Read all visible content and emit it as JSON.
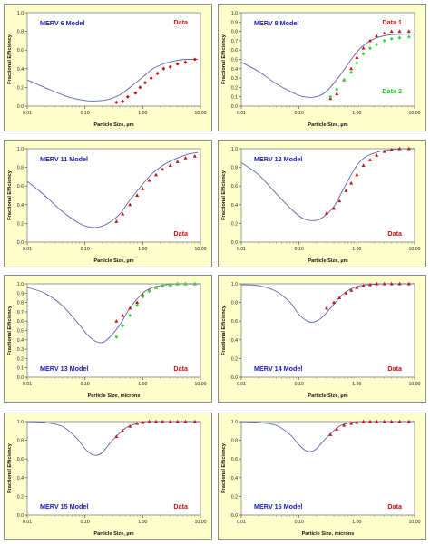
{
  "chart_data": [
    {
      "type": "scatter",
      "title": "MERV 6 Model",
      "xlabel": "Particle Size, µm",
      "ylabel": "Fractional Efficiency",
      "xscale": "log",
      "xlim": [
        0.01,
        10
      ],
      "ylim": [
        0,
        1
      ],
      "x_ticks": [
        "0.01",
        "0.10",
        "1.00",
        "10.00"
      ],
      "y_ticks": [
        "0.0",
        "0.2",
        "0.4",
        "0.6",
        "0.8",
        "1.0"
      ],
      "title_position": "top-left",
      "legend_position": "top-right",
      "series": [
        {
          "name": "MERV 6 Model",
          "kind": "line",
          "color": "#5a64b4",
          "x": [
            0.01,
            0.02,
            0.05,
            0.1,
            0.15,
            0.25,
            0.4,
            0.6,
            1.0,
            1.5,
            2.5,
            4,
            6,
            9
          ],
          "y": [
            0.28,
            0.2,
            0.1,
            0.06,
            0.055,
            0.07,
            0.12,
            0.2,
            0.31,
            0.4,
            0.46,
            0.49,
            0.5,
            0.5
          ]
        },
        {
          "name": "Data",
          "kind": "marker",
          "color": "#cc1111",
          "marker": "diamond",
          "x": [
            0.35,
            0.45,
            0.55,
            0.75,
            0.9,
            1.1,
            1.4,
            1.8,
            2.3,
            3,
            4,
            5.5,
            8
          ],
          "y": [
            0.04,
            0.05,
            0.1,
            0.14,
            0.2,
            0.25,
            0.3,
            0.35,
            0.4,
            0.42,
            0.45,
            0.47,
            0.5
          ]
        }
      ]
    },
    {
      "type": "scatter",
      "title": "MERV 8 Model",
      "xlabel": "Particle Size, µm",
      "ylabel": "Fractional Efficiency",
      "xscale": "log",
      "xlim": [
        0.01,
        10
      ],
      "ylim": [
        0,
        1
      ],
      "x_ticks": [
        "0.01",
        "0.10",
        "1.00",
        "10.00"
      ],
      "y_ticks": [
        "0.0",
        "0.1",
        "0.2",
        "0.3",
        "0.4",
        "0.5",
        "0.6",
        "0.7",
        "0.8",
        "0.9",
        "1.0"
      ],
      "title_position": "top-left",
      "legend_position": "top-right",
      "series": [
        {
          "name": "MERV 8 Model",
          "kind": "line",
          "color": "#5a64b4",
          "x": [
            0.01,
            0.02,
            0.04,
            0.08,
            0.12,
            0.2,
            0.3,
            0.5,
            0.8,
            1.2,
            2,
            3.5,
            6,
            10
          ],
          "y": [
            0.47,
            0.37,
            0.24,
            0.14,
            0.1,
            0.1,
            0.16,
            0.32,
            0.5,
            0.63,
            0.72,
            0.76,
            0.77,
            0.77
          ]
        },
        {
          "name": "Data 1",
          "kind": "marker",
          "color": "#cc1111",
          "marker": "triangle",
          "x": [
            0.35,
            0.45,
            0.6,
            0.8,
            1.0,
            1.3,
            1.7,
            2.2,
            3,
            4,
            5.5,
            8
          ],
          "y": [
            0.08,
            0.13,
            0.28,
            0.4,
            0.52,
            0.62,
            0.7,
            0.75,
            0.78,
            0.8,
            0.8,
            0.8
          ]
        },
        {
          "name": "Data 2",
          "kind": "marker",
          "color": "#33dd33",
          "marker": "diamond",
          "x": [
            0.35,
            0.45,
            0.6,
            0.8,
            1.0,
            1.3,
            1.7,
            2.2,
            3,
            4,
            5.5,
            8
          ],
          "y": [
            0.1,
            0.18,
            0.28,
            0.36,
            0.46,
            0.56,
            0.62,
            0.66,
            0.7,
            0.72,
            0.73,
            0.74
          ]
        }
      ]
    },
    {
      "type": "scatter",
      "title": "MERV 11 Model",
      "xlabel": "Particle Size, µm",
      "ylabel": "Fractional Efficiency",
      "xscale": "log",
      "xlim": [
        0.01,
        10
      ],
      "ylim": [
        0,
        1
      ],
      "x_ticks": [
        "0.01",
        "0.10",
        "1.00",
        "10.00"
      ],
      "y_ticks": [
        "0.0",
        "0.2",
        "0.4",
        "0.6",
        "0.8",
        "1.0"
      ],
      "title_position": "top-left",
      "legend_position": "bottom-right",
      "series": [
        {
          "name": "MERV 11 Model",
          "kind": "line",
          "color": "#5a64b4",
          "x": [
            0.01,
            0.02,
            0.04,
            0.08,
            0.12,
            0.17,
            0.25,
            0.4,
            0.6,
            1.0,
            1.5,
            2.5,
            4,
            6,
            9
          ],
          "y": [
            0.65,
            0.5,
            0.33,
            0.2,
            0.16,
            0.16,
            0.2,
            0.3,
            0.45,
            0.62,
            0.74,
            0.84,
            0.9,
            0.94,
            0.96
          ]
        },
        {
          "name": "Data",
          "kind": "marker",
          "color": "#cc1111",
          "marker": "triangle",
          "x": [
            0.35,
            0.45,
            0.6,
            0.8,
            1.0,
            1.3,
            1.7,
            2.2,
            3,
            4,
            5.5,
            8
          ],
          "y": [
            0.22,
            0.3,
            0.4,
            0.5,
            0.57,
            0.66,
            0.72,
            0.78,
            0.82,
            0.86,
            0.9,
            0.92
          ]
        }
      ]
    },
    {
      "type": "scatter",
      "title": "MERV 12 Model",
      "xlabel": "Particle Size, µm",
      "ylabel": "Fractional Efficiency",
      "xscale": "log",
      "xlim": [
        0.01,
        10
      ],
      "ylim": [
        0,
        1
      ],
      "x_ticks": [
        "0.01",
        "0.10",
        "1.00",
        "10.00"
      ],
      "y_ticks": [
        "0.0",
        "0.2",
        "0.4",
        "0.6",
        "0.8",
        "1.0"
      ],
      "title_position": "top-left",
      "legend_position": "bottom-right",
      "series": [
        {
          "name": "MERV 12 Model",
          "kind": "line",
          "color": "#5a64b4",
          "x": [
            0.01,
            0.02,
            0.04,
            0.08,
            0.12,
            0.18,
            0.25,
            0.4,
            0.6,
            1.0,
            1.5,
            2.5,
            4,
            6,
            10
          ],
          "y": [
            0.85,
            0.72,
            0.52,
            0.33,
            0.25,
            0.23,
            0.26,
            0.38,
            0.58,
            0.82,
            0.92,
            0.97,
            0.99,
            1.0,
            1.0
          ]
        },
        {
          "name": "Data",
          "kind": "marker",
          "color": "#cc1111",
          "marker": "triangle",
          "x": [
            0.3,
            0.4,
            0.5,
            0.65,
            0.8,
            1.0,
            1.3,
            1.7,
            2.2,
            3,
            4,
            5.5,
            8
          ],
          "y": [
            0.31,
            0.36,
            0.44,
            0.55,
            0.63,
            0.72,
            0.82,
            0.88,
            0.93,
            0.97,
            0.99,
            1.0,
            1.0
          ]
        }
      ]
    },
    {
      "type": "scatter",
      "title": "MERV 13 Model",
      "xlabel": "Particle Size, microns",
      "ylabel": "Fractional Efficiency",
      "xscale": "log",
      "xlim": [
        0.01,
        10
      ],
      "ylim": [
        0,
        1
      ],
      "x_ticks": [
        "0.01",
        "0.10",
        "1.00",
        "10.00"
      ],
      "y_ticks": [
        "0.0",
        "0.1",
        "0.2",
        "0.3",
        "0.4",
        "0.5",
        "0.6",
        "0.7",
        "0.8",
        "0.9",
        "1.0"
      ],
      "title_position": "bottom-left",
      "legend_position": "bottom-right",
      "series": [
        {
          "name": "MERV 13 Model",
          "kind": "line",
          "color": "#5a64b4",
          "x": [
            0.01,
            0.02,
            0.04,
            0.08,
            0.12,
            0.18,
            0.25,
            0.4,
            0.6,
            1.0,
            1.5,
            2.5,
            4,
            6,
            10
          ],
          "y": [
            0.96,
            0.9,
            0.77,
            0.56,
            0.43,
            0.37,
            0.41,
            0.56,
            0.74,
            0.9,
            0.96,
            0.99,
            1.0,
            1.0,
            1.0
          ]
        },
        {
          "name": "Data",
          "kind": "marker",
          "color": "#cc1111",
          "marker": "triangle",
          "x": [
            0.35,
            0.45,
            0.6,
            0.8,
            1.0,
            1.3,
            1.7,
            2.2,
            3,
            4,
            5.5,
            8
          ],
          "y": [
            0.6,
            0.66,
            0.74,
            0.8,
            0.88,
            0.93,
            0.96,
            0.98,
            0.99,
            1.0,
            1.0,
            1.0
          ]
        },
        {
          "name": "",
          "kind": "marker",
          "color": "#33dd33",
          "marker": "diamond",
          "x": [
            0.35,
            0.45,
            0.6,
            0.8,
            1.0,
            1.3,
            1.7,
            2.2,
            3,
            4,
            5.5,
            8
          ],
          "y": [
            0.43,
            0.55,
            0.66,
            0.77,
            0.86,
            0.92,
            0.96,
            0.98,
            0.99,
            1.0,
            1.0,
            1.0
          ]
        }
      ]
    },
    {
      "type": "scatter",
      "title": "MERV 14 Model",
      "xlabel": "Particle Size, µm",
      "ylabel": "Fractional Efficiency",
      "xscale": "log",
      "xlim": [
        0.01,
        10
      ],
      "ylim": [
        0,
        1
      ],
      "x_ticks": [
        "0.01",
        "0.10",
        "1.00",
        "10.00"
      ],
      "y_ticks": [
        "0.0",
        "0.2",
        "0.4",
        "0.6",
        "0.8",
        "1.0"
      ],
      "title_position": "bottom-left",
      "legend_position": "bottom-right",
      "series": [
        {
          "name": "MERV 14 Model",
          "kind": "line",
          "color": "#5a64b4",
          "x": [
            0.01,
            0.02,
            0.04,
            0.07,
            0.1,
            0.14,
            0.18,
            0.25,
            0.4,
            0.6,
            1.0,
            1.5,
            3,
            6,
            10
          ],
          "y": [
            0.99,
            0.98,
            0.92,
            0.8,
            0.67,
            0.6,
            0.59,
            0.64,
            0.78,
            0.9,
            0.97,
            0.99,
            1.0,
            1.0,
            1.0
          ]
        },
        {
          "name": "Data",
          "kind": "marker",
          "color": "#cc1111",
          "marker": "triangle",
          "x": [
            0.3,
            0.4,
            0.5,
            0.65,
            0.8,
            1.0,
            1.3,
            1.7,
            2.2,
            3,
            4,
            5.5,
            8
          ],
          "y": [
            0.74,
            0.8,
            0.85,
            0.9,
            0.93,
            0.96,
            0.98,
            0.99,
            1.0,
            1.0,
            1.0,
            1.0,
            1.0
          ]
        }
      ]
    },
    {
      "type": "scatter",
      "title": "MERV 15 Model",
      "xlabel": "Particle Size, µm",
      "ylabel": "Fractional Efficiency",
      "xscale": "log",
      "xlim": [
        0.01,
        10
      ],
      "ylim": [
        0,
        1
      ],
      "x_ticks": [
        "0.01",
        "0.10",
        "1.00",
        "10.00"
      ],
      "y_ticks": [
        "0.0",
        "0.2",
        "0.4",
        "0.6",
        "0.8",
        "1.0"
      ],
      "title_position": "bottom-left",
      "legend_position": "bottom-right",
      "series": [
        {
          "name": "MERV 15 Model",
          "kind": "line",
          "color": "#5a64b4",
          "x": [
            0.01,
            0.02,
            0.04,
            0.07,
            0.1,
            0.13,
            0.16,
            0.2,
            0.3,
            0.5,
            0.8,
            1.2,
            2,
            5,
            10
          ],
          "y": [
            1.0,
            0.99,
            0.95,
            0.83,
            0.71,
            0.65,
            0.64,
            0.67,
            0.8,
            0.93,
            0.98,
            1.0,
            1.0,
            1.0,
            1.0
          ]
        },
        {
          "name": "Data",
          "kind": "marker",
          "color": "#cc1111",
          "marker": "triangle",
          "x": [
            0.35,
            0.45,
            0.6,
            0.8,
            1.0,
            1.3,
            1.7,
            2.2,
            3,
            4,
            5.5,
            8
          ],
          "y": [
            0.84,
            0.9,
            0.95,
            0.98,
            0.99,
            1.0,
            1.0,
            1.0,
            1.0,
            1.0,
            1.0,
            1.0
          ]
        }
      ]
    },
    {
      "type": "scatter",
      "title": "MERV 16 Model",
      "xlabel": "Particle Size, microns",
      "ylabel": "Fractional Efficiency",
      "xscale": "log",
      "xlim": [
        0.01,
        10
      ],
      "ylim": [
        0,
        1
      ],
      "x_ticks": [
        "0.01",
        "0.10",
        "1.00",
        "10.00"
      ],
      "y_ticks": [
        "0.0",
        "0.2",
        "0.4",
        "0.6",
        "0.8",
        "1.0"
      ],
      "title_position": "bottom-left",
      "legend_position": "bottom-right",
      "series": [
        {
          "name": "MERV 16 Model",
          "kind": "line",
          "color": "#5a64b4",
          "x": [
            0.01,
            0.02,
            0.04,
            0.07,
            0.1,
            0.13,
            0.16,
            0.2,
            0.3,
            0.5,
            0.8,
            1.2,
            2,
            5,
            10
          ],
          "y": [
            1.0,
            0.99,
            0.96,
            0.86,
            0.75,
            0.69,
            0.68,
            0.71,
            0.83,
            0.95,
            0.99,
            1.0,
            1.0,
            1.0,
            1.0
          ]
        },
        {
          "name": "Data",
          "kind": "marker",
          "color": "#cc1111",
          "marker": "triangle",
          "x": [
            0.35,
            0.45,
            0.6,
            0.8,
            1.0,
            1.3,
            1.7,
            2.2,
            3,
            4,
            5.5,
            8
          ],
          "y": [
            0.86,
            0.92,
            0.96,
            0.98,
            0.99,
            1.0,
            1.0,
            1.0,
            1.0,
            1.0,
            1.0,
            1.0
          ]
        }
      ]
    }
  ]
}
